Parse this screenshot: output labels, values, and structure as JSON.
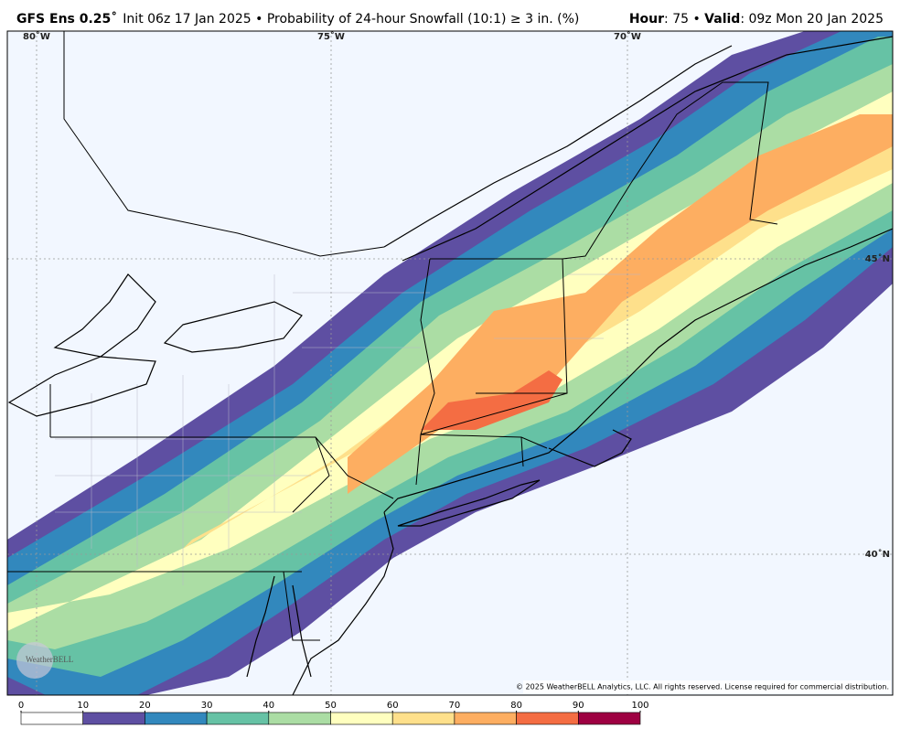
{
  "header": {
    "model": "GFS Ens 0.25˚",
    "description": "Init 06z 17 Jan 2025 • Probability of 24-hour Snowfall (10:1) ≥ 3 in. (%)",
    "hour_label": "Hour",
    "hour_value": ": 75 • ",
    "valid_label": "Valid",
    "valid_value": ": 09z Mon 20 Jan 2025"
  },
  "map": {
    "longitude_labels": [
      "80˚W",
      "75˚W",
      "70˚W"
    ],
    "latitude_labels": [
      "45˚N",
      "40˚N"
    ],
    "copyright": "© 2025 WeatherBELL Analytics, LLC. All rights reserved. License required for commercial distribution.",
    "logo": "WeatherBELL"
  },
  "colorbar": {
    "ticks": [
      0,
      10,
      20,
      30,
      40,
      50,
      60,
      70,
      80,
      90,
      100
    ],
    "colors": [
      "#ffffff",
      "#5e4fa2",
      "#3288bd",
      "#66c2a5",
      "#abdda4",
      "#ffffbf",
      "#fee08b",
      "#fdae61",
      "#f46d43",
      "#9e0142"
    ]
  }
}
